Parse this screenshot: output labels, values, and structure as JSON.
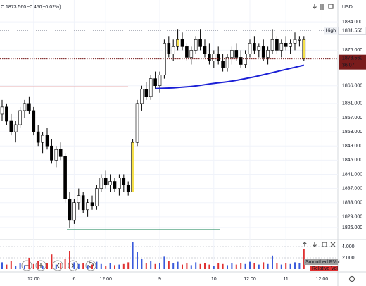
{
  "chart_data": {
    "type": "candlestick",
    "header": {
      "symbol": "C",
      "price": "1873.560",
      "change": "−0.450",
      "change_pct": "(−0.02%)"
    },
    "currency": "USD",
    "ylim": [
      1823,
      1889
    ],
    "yticks": [
      {
        "value": 1884,
        "label": "1884.000"
      },
      {
        "value": 1876,
        "label": "1876.000"
      },
      {
        "value": 1866,
        "label": "1866.000"
      },
      {
        "value": 1861,
        "label": "1861.000"
      },
      {
        "value": 1857,
        "label": "1857.000"
      },
      {
        "value": 1853,
        "label": "1853.000"
      },
      {
        "value": 1849,
        "label": "1849.000"
      },
      {
        "value": 1845,
        "label": "1845.000"
      },
      {
        "value": 1841,
        "label": "1841.000"
      },
      {
        "value": 1837,
        "label": "1837.000"
      },
      {
        "value": 1833,
        "label": "1833.000"
      },
      {
        "value": 1829,
        "label": "1829.000"
      },
      {
        "value": 1826,
        "label": "1826.000"
      }
    ],
    "high": {
      "name": "High",
      "value": 1881.55,
      "label": "1881.550"
    },
    "last": {
      "value": 1873.56,
      "label": "1873.560",
      "countdown": "36:07",
      "color": "#7a1c1c"
    },
    "xticks": [
      {
        "value": 7,
        "label": "12:00"
      },
      {
        "value": 16,
        "label": "6"
      },
      {
        "value": 23,
        "label": "12:00"
      },
      {
        "value": 35,
        "label": "9"
      },
      {
        "value": 47,
        "label": "10"
      },
      {
        "value": 55,
        "label": "12:00"
      },
      {
        "value": 63,
        "label": "11"
      },
      {
        "value": 71,
        "label": "12:00"
      }
    ],
    "up_color": "#ffffff",
    "down_color": "#000000",
    "highlight_color": "#f5e04a",
    "highlighted": [
      29,
      39,
      67
    ],
    "candles": [
      [
        1858,
        1862,
        1856,
        1860
      ],
      [
        1860,
        1861,
        1855,
        1856
      ],
      [
        1856,
        1858,
        1852,
        1853
      ],
      [
        1853,
        1856,
        1850,
        1855
      ],
      [
        1855,
        1860,
        1854,
        1859
      ],
      [
        1859,
        1862,
        1857,
        1861
      ],
      [
        1861,
        1863,
        1858,
        1859
      ],
      [
        1859,
        1860,
        1852,
        1853
      ],
      [
        1853,
        1855,
        1849,
        1850
      ],
      [
        1850,
        1853,
        1847,
        1852
      ],
      [
        1852,
        1854,
        1848,
        1849
      ],
      [
        1849,
        1851,
        1844,
        1845
      ],
      [
        1845,
        1849,
        1843,
        1848
      ],
      [
        1848,
        1850,
        1845,
        1846
      ],
      [
        1846,
        1847,
        1833,
        1834
      ],
      [
        1834,
        1836,
        1826,
        1828
      ],
      [
        1828,
        1834,
        1827,
        1833
      ],
      [
        1833,
        1837,
        1831,
        1835
      ],
      [
        1835,
        1836,
        1830,
        1831
      ],
      [
        1831,
        1834,
        1829,
        1833
      ],
      [
        1833,
        1835,
        1831,
        1832
      ],
      [
        1832,
        1838,
        1831,
        1837
      ],
      [
        1837,
        1841,
        1836,
        1840
      ],
      [
        1840,
        1842,
        1837,
        1838
      ],
      [
        1838,
        1841,
        1836,
        1839
      ],
      [
        1839,
        1840,
        1836,
        1837
      ],
      [
        1837,
        1841,
        1835,
        1840
      ],
      [
        1840,
        1841,
        1836,
        1838
      ],
      [
        1838,
        1839,
        1835,
        1836
      ],
      [
        1836,
        1851,
        1836,
        1850
      ],
      [
        1850,
        1862,
        1849,
        1861
      ],
      [
        1861,
        1866,
        1859,
        1865
      ],
      [
        1865,
        1867,
        1862,
        1863
      ],
      [
        1863,
        1869,
        1862,
        1868
      ],
      [
        1868,
        1870,
        1865,
        1866
      ],
      [
        1866,
        1870,
        1864,
        1869
      ],
      [
        1869,
        1879,
        1868,
        1878
      ],
      [
        1878,
        1880,
        1874,
        1875
      ],
      [
        1875,
        1879,
        1873,
        1877
      ],
      [
        1877,
        1882,
        1876,
        1879
      ],
      [
        1879,
        1881,
        1876,
        1877
      ],
      [
        1877,
        1878,
        1873,
        1874
      ],
      [
        1874,
        1877,
        1872,
        1876
      ],
      [
        1876,
        1880,
        1875,
        1879
      ],
      [
        1879,
        1882,
        1876,
        1877
      ],
      [
        1877,
        1879,
        1874,
        1875
      ],
      [
        1875,
        1878,
        1872,
        1873
      ],
      [
        1873,
        1876,
        1871,
        1875
      ],
      [
        1875,
        1877,
        1872,
        1873
      ],
      [
        1873,
        1875,
        1870,
        1871
      ],
      [
        1871,
        1875,
        1870,
        1874
      ],
      [
        1874,
        1877,
        1872,
        1876
      ],
      [
        1876,
        1878,
        1873,
        1874
      ],
      [
        1874,
        1876,
        1871,
        1872
      ],
      [
        1872,
        1876,
        1871,
        1875
      ],
      [
        1875,
        1879,
        1874,
        1878
      ],
      [
        1878,
        1880,
        1875,
        1876
      ],
      [
        1876,
        1878,
        1874,
        1877
      ],
      [
        1877,
        1879,
        1873,
        1874
      ],
      [
        1874,
        1877,
        1872,
        1876
      ],
      [
        1876,
        1882,
        1875,
        1879
      ],
      [
        1879,
        1880,
        1875,
        1876
      ],
      [
        1876,
        1879,
        1874,
        1878
      ],
      [
        1878,
        1880,
        1876,
        1877
      ],
      [
        1877,
        1879,
        1875,
        1878
      ],
      [
        1878,
        1881,
        1876,
        1879
      ],
      [
        1879,
        1880,
        1877,
        1879
      ],
      [
        1879,
        1880,
        1873,
        1873.56
      ]
    ],
    "ma": {
      "color": "#1a1fd6",
      "values": [
        null,
        null,
        null,
        null,
        null,
        null,
        null,
        null,
        null,
        null,
        null,
        null,
        null,
        null,
        null,
        null,
        null,
        null,
        null,
        null,
        null,
        null,
        null,
        null,
        null,
        null,
        null,
        null,
        null,
        null,
        null,
        null,
        null,
        null,
        1865.2,
        1865.25,
        1865.3,
        1865.35,
        1865.4,
        1865.5,
        1865.6,
        1865.7,
        1865.8,
        1865.95,
        1866.1,
        1866.3,
        1866.5,
        1866.65,
        1866.8,
        1866.95,
        1867.1,
        1867.3,
        1867.5,
        1867.75,
        1868.0,
        1868.25,
        1868.5,
        1868.8,
        1869.1,
        1869.4,
        1869.7,
        1870.0,
        1870.3,
        1870.6,
        1870.9,
        1871.2,
        1871.5,
        1871.8
      ]
    },
    "levels": [
      {
        "value": 1865.7,
        "color": "#e06666"
      },
      {
        "value": 1825.4,
        "color": "#3d9970"
      }
    ],
    "volume": {
      "ylim": [
        0,
        5
      ],
      "yticks": [
        {
          "value": 4,
          "label": "4.000"
        },
        {
          "value": 2,
          "label": "2.000"
        }
      ],
      "legend": [
        "Smoothed RVol",
        "Relative Vol"
      ],
      "up_color": "#3b5bdb",
      "down_color": "#e03131",
      "values": [
        1.2,
        0.8,
        1.5,
        0.6,
        1.0,
        0.7,
        2.0,
        0.9,
        1.4,
        0.6,
        1.1,
        2.6,
        0.8,
        1.0,
        1.8,
        3.2,
        1.2,
        0.9,
        1.0,
        0.7,
        0.8,
        1.3,
        0.9,
        0.6,
        1.0,
        0.7,
        0.8,
        0.9,
        1.2,
        4.8,
        3.0,
        1.8,
        1.0,
        1.4,
        0.9,
        1.1,
        2.2,
        1.5,
        1.0,
        1.3,
        0.8,
        1.0,
        0.7,
        1.2,
        0.9,
        1.0,
        0.8,
        0.6,
        1.0,
        0.9,
        0.7,
        1.1,
        0.8,
        1.0,
        0.9,
        1.3,
        1.0,
        0.8,
        1.2,
        0.9,
        2.4,
        1.1,
        0.8,
        1.0,
        0.9,
        1.2,
        1.0,
        3.6
      ]
    }
  }
}
